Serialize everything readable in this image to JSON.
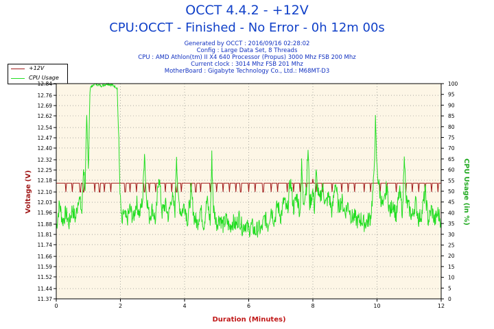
{
  "header": {
    "title": "OCCT 4.4.2 - +12V",
    "subtitle": "CPU:OCCT - Finished - No Error - 0h 12m 00s",
    "info": [
      "Generated by OCCT : 2016/09/16 02:28:02",
      "Config : Large Data Set, 8 Threads",
      "CPU : AMD Athlon(tm) II X4 640 Processor (Propus) 3000 Mhz FSB 200 Mhz",
      "Current clock : 3014 Mhz FSB 201 Mhz",
      "MotherBoard : Gigabyte Technology Co., Ltd.: M68MT-D3"
    ]
  },
  "legend": {
    "items": [
      {
        "label": "+12V",
        "color": "#a01818"
      },
      {
        "label": "CPU Usage",
        "color": "#22dd22"
      }
    ]
  },
  "colors": {
    "plot_background": "#fdf6e6",
    "voltage": "#a01818",
    "cpu": "#22dd22",
    "left_axis_label": "#a01818",
    "right_axis_label": "#22aa22",
    "x_axis_label": "#c01818"
  },
  "chart_data": {
    "type": "line",
    "xlabel": "Duration (Minutes)",
    "ylabel": "Voltage (V)",
    "y2label": "CPU Usage (in %)",
    "xlim": [
      0,
      12
    ],
    "ylim": [
      11.37,
      12.84
    ],
    "y2lim": [
      0,
      100
    ],
    "x_ticks": [
      "0",
      "2",
      "4",
      "6",
      "8",
      "10",
      "12"
    ],
    "y_ticks": [
      "11.37",
      "11.44",
      "11.52",
      "11.59",
      "11.66",
      "11.74",
      "11.81",
      "11.88",
      "11.96",
      "12.03",
      "12.10",
      "12.18",
      "12.25",
      "12.32",
      "12.40",
      "12.47",
      "12.54",
      "12.62",
      "12.69",
      "12.76",
      "12.84"
    ],
    "y2_ticks": [
      "0",
      "5",
      "10",
      "15",
      "20",
      "25",
      "30",
      "35",
      "40",
      "45",
      "50",
      "55",
      "60",
      "65",
      "70",
      "75",
      "80",
      "85",
      "90",
      "95",
      "100"
    ],
    "grid": true,
    "series": [
      {
        "name": "+12V",
        "baseline": 12.16,
        "dip_to": 12.1,
        "spike_to": 12.19,
        "spike_at": [
          8.0
        ],
        "dips_at": [
          0.3,
          0.5,
          0.75,
          0.85,
          1.2,
          1.35,
          1.5,
          1.7,
          2.15,
          2.3,
          2.5,
          2.75,
          2.9,
          3.1,
          3.4,
          3.6,
          3.75,
          3.9,
          4.2,
          4.35,
          4.5,
          4.8,
          5.0,
          5.2,
          5.4,
          5.6,
          5.75,
          6.0,
          6.2,
          6.45,
          6.7,
          6.9,
          7.2,
          7.4,
          7.6,
          7.8,
          8.1,
          8.3,
          8.6,
          8.9,
          9.1,
          9.3,
          9.6,
          9.8,
          10.1,
          10.3,
          10.6,
          10.9,
          11.1,
          11.3,
          11.5,
          11.7,
          11.9
        ]
      },
      {
        "name": "CPU Usage",
        "points": [
          [
            0.0,
            33
          ],
          [
            0.1,
            44
          ],
          [
            0.2,
            36
          ],
          [
            0.3,
            40
          ],
          [
            0.4,
            35
          ],
          [
            0.5,
            42
          ],
          [
            0.6,
            37
          ],
          [
            0.7,
            48
          ],
          [
            0.8,
            40
          ],
          [
            0.85,
            62
          ],
          [
            0.9,
            52
          ],
          [
            0.95,
            82
          ],
          [
            1.0,
            60
          ],
          [
            1.05,
            98
          ],
          [
            1.2,
            100
          ],
          [
            1.4,
            99
          ],
          [
            1.6,
            100
          ],
          [
            1.8,
            99
          ],
          [
            1.9,
            98
          ],
          [
            1.95,
            72
          ],
          [
            2.0,
            45
          ],
          [
            2.05,
            34
          ],
          [
            2.1,
            40
          ],
          [
            2.2,
            36
          ],
          [
            2.3,
            42
          ],
          [
            2.4,
            37
          ],
          [
            2.5,
            45
          ],
          [
            2.6,
            39
          ],
          [
            2.7,
            47
          ],
          [
            2.75,
            70
          ],
          [
            2.8,
            50
          ],
          [
            2.9,
            38
          ],
          [
            3.0,
            42
          ],
          [
            3.1,
            36
          ],
          [
            3.2,
            58
          ],
          [
            3.3,
            40
          ],
          [
            3.4,
            44
          ],
          [
            3.5,
            38
          ],
          [
            3.6,
            48
          ],
          [
            3.7,
            41
          ],
          [
            3.75,
            68
          ],
          [
            3.8,
            46
          ],
          [
            3.9,
            40
          ],
          [
            4.0,
            44
          ],
          [
            4.1,
            36
          ],
          [
            4.2,
            50
          ],
          [
            4.3,
            38
          ],
          [
            4.4,
            35
          ],
          [
            4.5,
            42
          ],
          [
            4.6,
            34
          ],
          [
            4.7,
            46
          ],
          [
            4.8,
            36
          ],
          [
            4.85,
            66
          ],
          [
            4.9,
            42
          ],
          [
            5.0,
            35
          ],
          [
            5.1,
            38
          ],
          [
            5.2,
            34
          ],
          [
            5.3,
            37
          ],
          [
            5.4,
            33
          ],
          [
            5.5,
            36
          ],
          [
            5.6,
            34
          ],
          [
            5.7,
            38
          ],
          [
            5.8,
            33
          ],
          [
            5.9,
            35
          ],
          [
            6.0,
            32
          ],
          [
            6.1,
            34
          ],
          [
            6.2,
            31
          ],
          [
            6.3,
            33
          ],
          [
            6.4,
            32
          ],
          [
            6.5,
            38
          ],
          [
            6.6,
            34
          ],
          [
            6.7,
            42
          ],
          [
            6.8,
            36
          ],
          [
            6.9,
            44
          ],
          [
            7.0,
            38
          ],
          [
            7.1,
            46
          ],
          [
            7.2,
            40
          ],
          [
            7.3,
            55
          ],
          [
            7.4,
            42
          ],
          [
            7.5,
            48
          ],
          [
            7.6,
            40
          ],
          [
            7.65,
            62
          ],
          [
            7.7,
            45
          ],
          [
            7.8,
            52
          ],
          [
            7.85,
            70
          ],
          [
            7.9,
            44
          ],
          [
            8.0,
            50
          ],
          [
            8.05,
            42
          ],
          [
            8.1,
            58
          ],
          [
            8.2,
            45
          ],
          [
            8.3,
            52
          ],
          [
            8.4,
            44
          ],
          [
            8.5,
            48
          ],
          [
            8.6,
            40
          ],
          [
            8.7,
            55
          ],
          [
            8.8,
            42
          ],
          [
            8.9,
            46
          ],
          [
            9.0,
            40
          ],
          [
            9.1,
            44
          ],
          [
            9.2,
            38
          ],
          [
            9.3,
            38
          ],
          [
            9.4,
            36
          ],
          [
            9.5,
            37
          ],
          [
            9.6,
            35
          ],
          [
            9.7,
            36
          ],
          [
            9.8,
            38
          ],
          [
            9.85,
            46
          ],
          [
            9.9,
            55
          ],
          [
            9.95,
            82
          ],
          [
            10.0,
            60
          ],
          [
            10.1,
            48
          ],
          [
            10.2,
            42
          ],
          [
            10.3,
            52
          ],
          [
            10.4,
            40
          ],
          [
            10.5,
            45
          ],
          [
            10.6,
            38
          ],
          [
            10.7,
            50
          ],
          [
            10.8,
            40
          ],
          [
            10.85,
            70
          ],
          [
            10.9,
            46
          ],
          [
            11.0,
            42
          ],
          [
            11.1,
            38
          ],
          [
            11.2,
            45
          ],
          [
            11.3,
            37
          ],
          [
            11.4,
            40
          ],
          [
            11.5,
            50
          ],
          [
            11.6,
            36
          ],
          [
            11.7,
            42
          ],
          [
            11.8,
            36
          ],
          [
            11.9,
            40
          ],
          [
            12.0,
            36
          ]
        ]
      }
    ]
  }
}
